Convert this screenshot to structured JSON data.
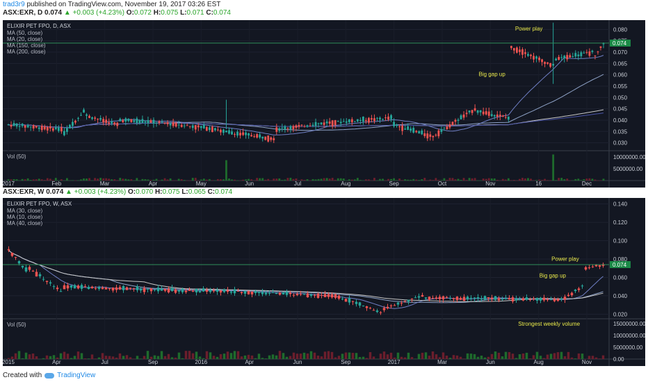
{
  "header": {
    "author": "trad3r9",
    "published": "published on TradingView.com, November 19, 2017 03:26 EST"
  },
  "footer": {
    "created_with": "Created with",
    "brand": "TradingView"
  },
  "colors": {
    "up": "#26a69a",
    "down": "#ef5350",
    "bg": "#131722",
    "annot": "#e8e84a",
    "last": "#1b8a47"
  },
  "panels": [
    {
      "quote": {
        "symbol": "ASX:EXR, D",
        "last": "0.074",
        "change": "▲ +0.003 (+4.23%)",
        "ohlc_o": "0.072",
        "ohlc_h": "0.075",
        "ohlc_l": "0.071",
        "ohlc_c": "0.074"
      },
      "title": "ELIXIR PET FPO, D, ASX",
      "indicators": [
        "MA (50, close)",
        "MA (20, close)",
        "MA (150, close)",
        "MA (200, close)"
      ],
      "vol_label": "Vol (50)",
      "last_tag": "0.074",
      "annotations": [
        {
          "text": "Power play"
        },
        {
          "text": "Big gap up"
        }
      ]
    },
    {
      "quote": {
        "symbol": "ASX:EXR, W",
        "last": "0.074",
        "change": "▲ +0.003 (+4.23%)",
        "ohlc_o": "0.070",
        "ohlc_h": "0.075",
        "ohlc_l": "0.065",
        "ohlc_c": "0.074"
      },
      "title": "ELIXIR PET FPO, W, ASX",
      "indicators": [
        "MA (30, close)",
        "MA (10, close)",
        "MA (40, close)"
      ],
      "vol_label": "Vol (50)",
      "last_tag": "0.074",
      "annotations": [
        {
          "text": "Power play"
        },
        {
          "text": "Big gap up"
        },
        {
          "text": "Strongest weekly volume"
        }
      ]
    }
  ],
  "chart_data": [
    {
      "type": "candlestick",
      "title": "ELIXIR PET FPO, D, ASX",
      "x_ticks": [
        "2017",
        "Feb",
        "Mar",
        "Apr",
        "May",
        "Jun",
        "Jul",
        "Aug",
        "Sep",
        "Oct",
        "Nov",
        "16",
        "Dec"
      ],
      "y_ticks": [
        0.03,
        0.035,
        0.04,
        0.045,
        0.05,
        0.055,
        0.06,
        0.065,
        0.07,
        0.075,
        0.08
      ],
      "y_tick_labels": [
        "0.030",
        "0.035",
        "0.040",
        "0.045",
        "0.050",
        "0.055",
        "0.060",
        "0.065",
        "0.070",
        "0.075",
        "0.080"
      ],
      "ylim": [
        0.0265,
        0.0835
      ],
      "vol_ticks": [
        5000000,
        10000000
      ],
      "vol_tick_labels": [
        "5000000.00",
        "10000000.00"
      ],
      "vol_max": 12000000,
      "segments": [
        {
          "from": 0.038,
          "to": 0.036,
          "n": 20
        },
        {
          "from": 0.034,
          "to": 0.044,
          "n": 8
        },
        {
          "from": 0.042,
          "to": 0.038,
          "n": 12
        },
        {
          "from": 0.04,
          "to": 0.039,
          "n": 14
        },
        {
          "from": 0.039,
          "to": 0.036,
          "n": 22
        },
        {
          "from": 0.035,
          "to": 0.032,
          "n": 20
        },
        {
          "from": 0.036,
          "to": 0.039,
          "n": 20
        },
        {
          "from": 0.039,
          "to": 0.041,
          "n": 22
        },
        {
          "from": 0.038,
          "to": 0.033,
          "n": 14
        },
        {
          "from": 0.033,
          "to": 0.045,
          "n": 16
        },
        {
          "from": 0.044,
          "to": 0.041,
          "n": 12
        },
        {
          "from": 0.072,
          "to": 0.07,
          "n": 6
        },
        {
          "from": 0.069,
          "to": 0.064,
          "n": 10
        },
        {
          "from": 0.067,
          "to": 0.07,
          "n": 14
        },
        {
          "from": 0.068,
          "to": 0.074,
          "n": 4
        }
      ],
      "spikes": [
        {
          "i": 195,
          "h": 0.083,
          "l": 0.056,
          "vol": 11000000
        },
        {
          "i": 78,
          "h": 0.049,
          "l": 0.036,
          "vol": 8600000
        }
      ],
      "annotations": [
        {
          "text": "Power play",
          "x": 0.845,
          "y": 0.0795
        },
        {
          "text": "Big gap up",
          "x": 0.785,
          "y": 0.0595
        }
      ],
      "last": 0.074
    },
    {
      "type": "candlestick",
      "title": "ELIXIR PET FPO, W, ASX",
      "x_ticks": [
        "2015",
        "Apr",
        "Jul",
        "Sep",
        "2016",
        "Apr",
        "Jun",
        "Sep",
        "2017",
        "Mar",
        "Jun",
        "Aug",
        "Nov"
      ],
      "y_ticks": [
        0.02,
        0.04,
        0.06,
        0.08,
        0.1,
        0.12,
        0.14
      ],
      "y_tick_labels": [
        "0.020",
        "0.040",
        "0.060",
        "0.080",
        "0.100",
        "0.120",
        "0.140"
      ],
      "ylim": [
        0.015,
        0.145
      ],
      "vol_ticks": [
        0,
        5000000,
        10000000,
        15000000
      ],
      "vol_tick_labels": [
        "0.00",
        "5000000.00",
        "10000000.00",
        "15000000.00"
      ],
      "vol_max": 16500000,
      "segments": [
        {
          "from": 0.09,
          "to": 0.068,
          "n": 6
        },
        {
          "from": 0.07,
          "to": 0.045,
          "n": 10
        },
        {
          "from": 0.05,
          "to": 0.045,
          "n": 40
        },
        {
          "from": 0.046,
          "to": 0.04,
          "n": 38
        },
        {
          "from": 0.04,
          "to": 0.022,
          "n": 14
        },
        {
          "from": 0.026,
          "to": 0.04,
          "n": 12
        },
        {
          "from": 0.038,
          "to": 0.036,
          "n": 40
        },
        {
          "from": 0.038,
          "to": 0.05,
          "n": 6
        },
        {
          "from": 0.07,
          "to": 0.074,
          "n": 6
        }
      ],
      "spikes": [
        {
          "i": 178,
          "h": 0.082,
          "l": 0.045,
          "vol": 15500000
        }
      ],
      "annotations": [
        {
          "text": "Power play",
          "x": 0.905,
          "y": 0.078
        },
        {
          "text": "Big gap up",
          "x": 0.885,
          "y": 0.06
        },
        {
          "text": "Strongest weekly volume",
          "x": 0.85,
          "vol": 14200000
        }
      ],
      "last": 0.074
    }
  ]
}
